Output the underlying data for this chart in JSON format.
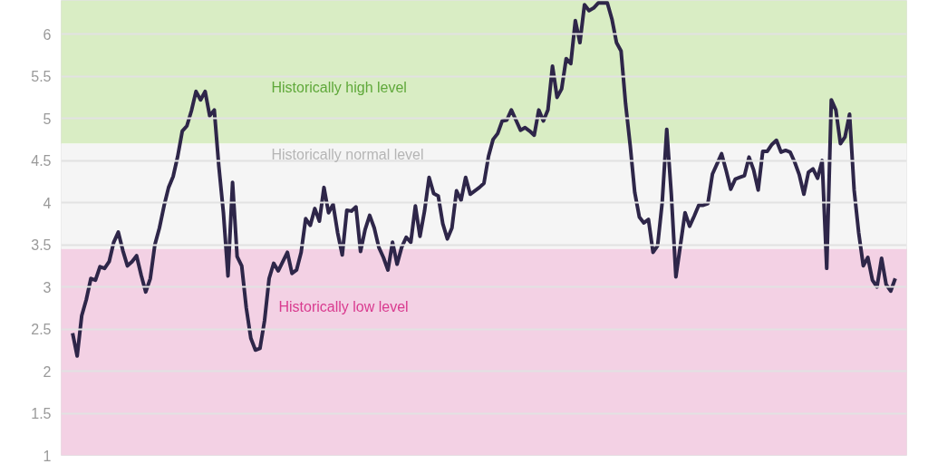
{
  "chart_data": {
    "type": "line",
    "categories": [
      null,
      null,
      null,
      null,
      null,
      null,
      null,
      null,
      null,
      null,
      null,
      null,
      null,
      null,
      null,
      null,
      null,
      null,
      null,
      null,
      null,
      null,
      null,
      null,
      null,
      null,
      null,
      null,
      null,
      null,
      null,
      null,
      null,
      null,
      null,
      null,
      null,
      null,
      null,
      null,
      null,
      null,
      null,
      null,
      null,
      null,
      null,
      null,
      null,
      null,
      null,
      null,
      null,
      null,
      null,
      null,
      null,
      null,
      null,
      null,
      null,
      null,
      null,
      null,
      null,
      null,
      null,
      null,
      null,
      null,
      null,
      null,
      null,
      null,
      null,
      null,
      null,
      null,
      null,
      null,
      null,
      null,
      null,
      null,
      null,
      null,
      null,
      null,
      null,
      null,
      null,
      null,
      null,
      null,
      null,
      null,
      null,
      null,
      null,
      null,
      null,
      null,
      null,
      null,
      null,
      null,
      null,
      null,
      null,
      null,
      null,
      null,
      null,
      null,
      null,
      null,
      null,
      null,
      null,
      null,
      null,
      null,
      null,
      null,
      null,
      null,
      null,
      null,
      null,
      null,
      null,
      null,
      null,
      null,
      null,
      null,
      null,
      null,
      null,
      null,
      null,
      null,
      null,
      null,
      null,
      null,
      null,
      null,
      null,
      null,
      null,
      null,
      null,
      null,
      null,
      null,
      null,
      null,
      null,
      null,
      null,
      null,
      null,
      null,
      null,
      null,
      null,
      null,
      null,
      null,
      null,
      null,
      null,
      null,
      null,
      null,
      null,
      null,
      null,
      null,
      null
    ],
    "series": [
      {
        "color": "#2e2649",
        "values": [
          2.45,
          2.18,
          2.66,
          2.85,
          3.1,
          3.08,
          3.24,
          3.22,
          3.3,
          3.53,
          3.65,
          3.43,
          3.25,
          3.3,
          3.37,
          3.14,
          2.94,
          3.1,
          3.5,
          3.7,
          3.96,
          4.18,
          4.31,
          4.55,
          4.85,
          4.91,
          5.09,
          5.32,
          5.22,
          5.32,
          5.03,
          5.1,
          4.43,
          3.88,
          3.13,
          4.24,
          3.36,
          3.25,
          2.75,
          2.39,
          2.25,
          2.27,
          2.6,
          3.1,
          3.28,
          3.19,
          3.3,
          3.41,
          3.16,
          3.2,
          3.41,
          3.81,
          3.73,
          3.93,
          3.78,
          4.18,
          3.88,
          3.98,
          3.64,
          3.38,
          3.91,
          3.9,
          3.95,
          3.42,
          3.68,
          3.85,
          3.7,
          3.47,
          3.35,
          3.2,
          3.53,
          3.27,
          3.47,
          3.59,
          3.53,
          3.96,
          3.6,
          3.9,
          4.3,
          4.11,
          4.08,
          3.75,
          3.57,
          3.7,
          4.14,
          4.03,
          4.3,
          4.1,
          4.14,
          4.18,
          4.23,
          4.55,
          4.75,
          4.82,
          4.97,
          4.98,
          5.1,
          4.98,
          4.86,
          4.89,
          4.85,
          4.8,
          5.1,
          4.97,
          5.1,
          5.62,
          5.25,
          5.35,
          5.71,
          5.65,
          6.16,
          5.9,
          6.35,
          6.28,
          6.31,
          6.37,
          6.37,
          6.37,
          6.18,
          5.9,
          5.8,
          5.17,
          4.68,
          4.12,
          3.83,
          3.76,
          3.8,
          3.41,
          3.49,
          4.0,
          4.87,
          4.1,
          3.12,
          3.5,
          3.88,
          3.72,
          3.84,
          3.97,
          3.97,
          3.99,
          4.34,
          4.46,
          4.58,
          4.38,
          4.16,
          4.28,
          4.3,
          4.32,
          4.54,
          4.39,
          4.15,
          4.61,
          4.61,
          4.69,
          4.74,
          4.6,
          4.62,
          4.6,
          4.48,
          4.33,
          4.1,
          4.36,
          4.4,
          4.29,
          4.5,
          3.22,
          5.22,
          5.1,
          4.7,
          4.78,
          5.05,
          4.15,
          3.64,
          3.25,
          3.35,
          3.08,
          3.0,
          3.34,
          3.03,
          2.95,
          3.1
        ]
      }
    ],
    "ylim": [
      1,
      6.4
    ],
    "yticks": [
      1,
      1.5,
      2,
      2.5,
      3,
      3.5,
      4,
      4.5,
      5,
      5.5,
      6
    ],
    "grid": "y",
    "tick_labels": "y",
    "bands": [
      {
        "axis": "y",
        "from": 4.7,
        "to": 6.4,
        "label": "Historically high level",
        "color": "#d9edc4"
      },
      {
        "axis": "y",
        "from": 3.45,
        "to": 4.7,
        "label": "Historically normal level",
        "color": "#f5f5f5"
      },
      {
        "axis": "y",
        "from": 1,
        "to": 3.45,
        "label": "Historically low level",
        "color": "#f3d1e4"
      }
    ]
  }
}
